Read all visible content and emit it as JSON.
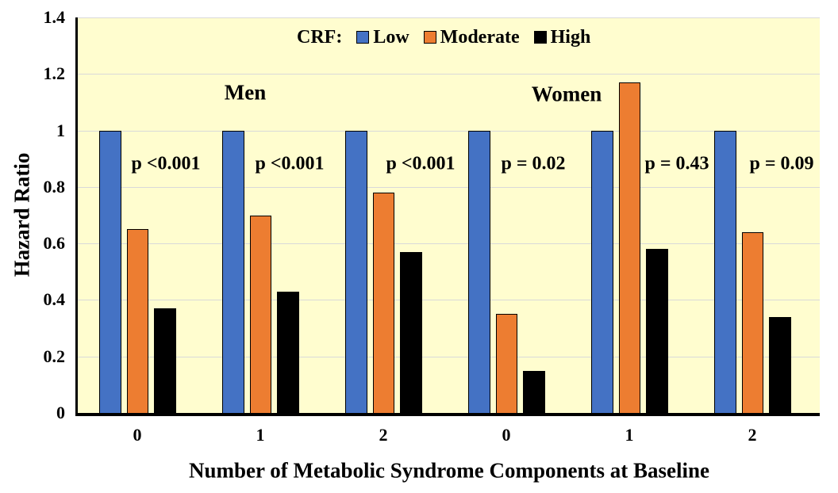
{
  "chart_data": {
    "type": "bar",
    "ylabel": "Hazard Ratio",
    "xlabel": "Number of Metabolic Syndrome Components at Baseline",
    "ylim": [
      0,
      1.4
    ],
    "ytick_labels": [
      "0",
      "0.2",
      "0.4",
      "0.6",
      "0.8",
      "1",
      "1.2",
      "1.4"
    ],
    "grid": true,
    "legend_position": "top-center-inside",
    "plot_background": "#FFFDCF",
    "grid_color": "#D9D9D9",
    "axis_color": "#000000",
    "legend_title": "CRF:",
    "categories": [
      "0",
      "1",
      "2",
      "0",
      "1",
      "2"
    ],
    "group_section_labels": [
      "Men",
      "Women"
    ],
    "series": [
      {
        "name": "Low",
        "color": "#4472C4",
        "values": [
          1,
          1,
          1,
          1,
          1,
          1
        ]
      },
      {
        "name": "Moderate",
        "color": "#ED7D31",
        "values": [
          0.65,
          0.7,
          0.78,
          0.35,
          1.17,
          0.64
        ]
      },
      {
        "name": "High",
        "color": "#000000",
        "values": [
          0.37,
          0.43,
          0.57,
          0.15,
          0.58,
          0.34
        ]
      }
    ],
    "p_value_annotations": [
      "p <0.001",
      "p <0.001",
      "p <0.001",
      "p = 0.02",
      "p = 0.43",
      "p = 0.09"
    ]
  }
}
